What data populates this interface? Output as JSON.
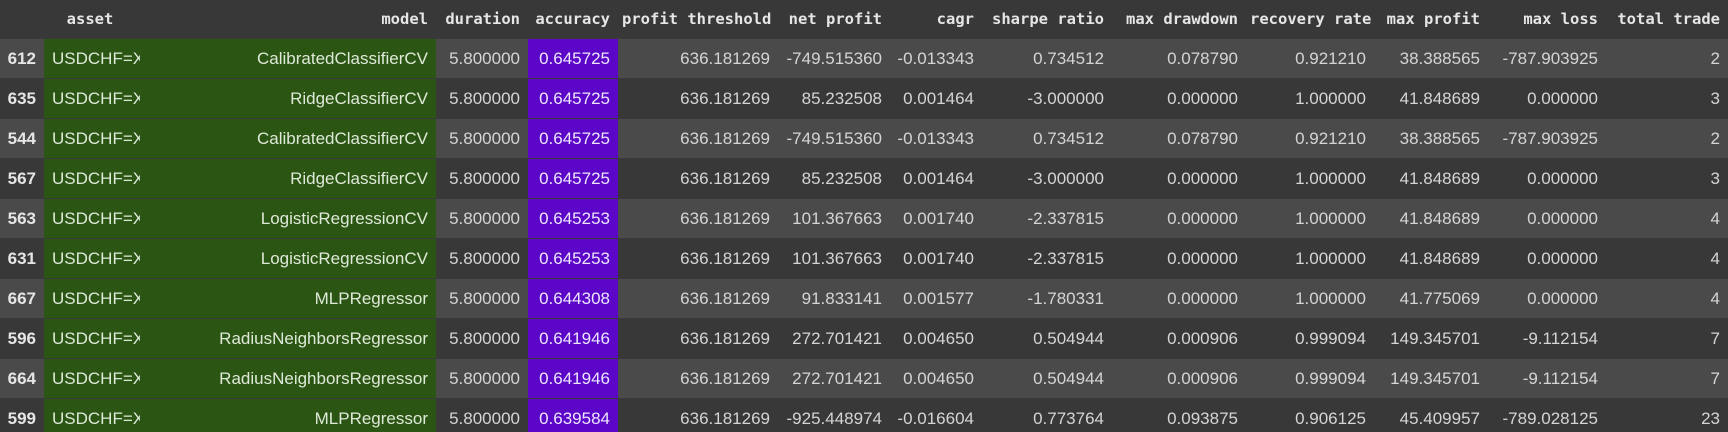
{
  "table": {
    "columns": [
      "",
      "asset",
      "model",
      "duration",
      "accuracy",
      "profit threshold",
      "net profit",
      "cagr",
      "sharpe ratio",
      "max drawdown",
      "recovery rate",
      "max profit",
      "max loss",
      "total trade"
    ],
    "rows": [
      [
        "612",
        "USDCHF=X",
        "CalibratedClassifierCV",
        "5.800000",
        "0.645725",
        "636.181269",
        "-749.515360",
        "-0.013343",
        "0.734512",
        "0.078790",
        "0.921210",
        "38.388565",
        "-787.903925",
        "2"
      ],
      [
        "635",
        "USDCHF=X",
        "RidgeClassifierCV",
        "5.800000",
        "0.645725",
        "636.181269",
        "85.232508",
        "0.001464",
        "-3.000000",
        "0.000000",
        "1.000000",
        "41.848689",
        "0.000000",
        "3"
      ],
      [
        "544",
        "USDCHF=X",
        "CalibratedClassifierCV",
        "5.800000",
        "0.645725",
        "636.181269",
        "-749.515360",
        "-0.013343",
        "0.734512",
        "0.078790",
        "0.921210",
        "38.388565",
        "-787.903925",
        "2"
      ],
      [
        "567",
        "USDCHF=X",
        "RidgeClassifierCV",
        "5.800000",
        "0.645725",
        "636.181269",
        "85.232508",
        "0.001464",
        "-3.000000",
        "0.000000",
        "1.000000",
        "41.848689",
        "0.000000",
        "3"
      ],
      [
        "563",
        "USDCHF=X",
        "LogisticRegressionCV",
        "5.800000",
        "0.645253",
        "636.181269",
        "101.367663",
        "0.001740",
        "-2.337815",
        "0.000000",
        "1.000000",
        "41.848689",
        "0.000000",
        "4"
      ],
      [
        "631",
        "USDCHF=X",
        "LogisticRegressionCV",
        "5.800000",
        "0.645253",
        "636.181269",
        "101.367663",
        "0.001740",
        "-2.337815",
        "0.000000",
        "1.000000",
        "41.848689",
        "0.000000",
        "4"
      ],
      [
        "667",
        "USDCHF=X",
        "MLPRegressor",
        "5.800000",
        "0.644308",
        "636.181269",
        "91.833141",
        "0.001577",
        "-1.780331",
        "0.000000",
        "1.000000",
        "41.775069",
        "0.000000",
        "4"
      ],
      [
        "596",
        "USDCHF=X",
        "RadiusNeighborsRegressor",
        "5.800000",
        "0.641946",
        "636.181269",
        "272.701421",
        "0.004650",
        "0.504944",
        "0.000906",
        "0.999094",
        "149.345701",
        "-9.112154",
        "7"
      ],
      [
        "664",
        "USDCHF=X",
        "RadiusNeighborsRegressor",
        "5.800000",
        "0.641946",
        "636.181269",
        "272.701421",
        "0.004650",
        "0.504944",
        "0.000906",
        "0.999094",
        "149.345701",
        "-9.112154",
        "7"
      ],
      [
        "599",
        "USDCHF=X",
        "MLPRegressor",
        "5.800000",
        "0.639584",
        "636.181269",
        "-925.448974",
        "-0.016604",
        "0.773764",
        "0.093875",
        "0.906125",
        "45.409957",
        "-789.028125",
        "23"
      ]
    ]
  },
  "colors": {
    "background": "#383838",
    "row_alt": "#4a4a4a",
    "highlight_green": "#2a5512",
    "highlight_purple": "#5c06c8"
  }
}
